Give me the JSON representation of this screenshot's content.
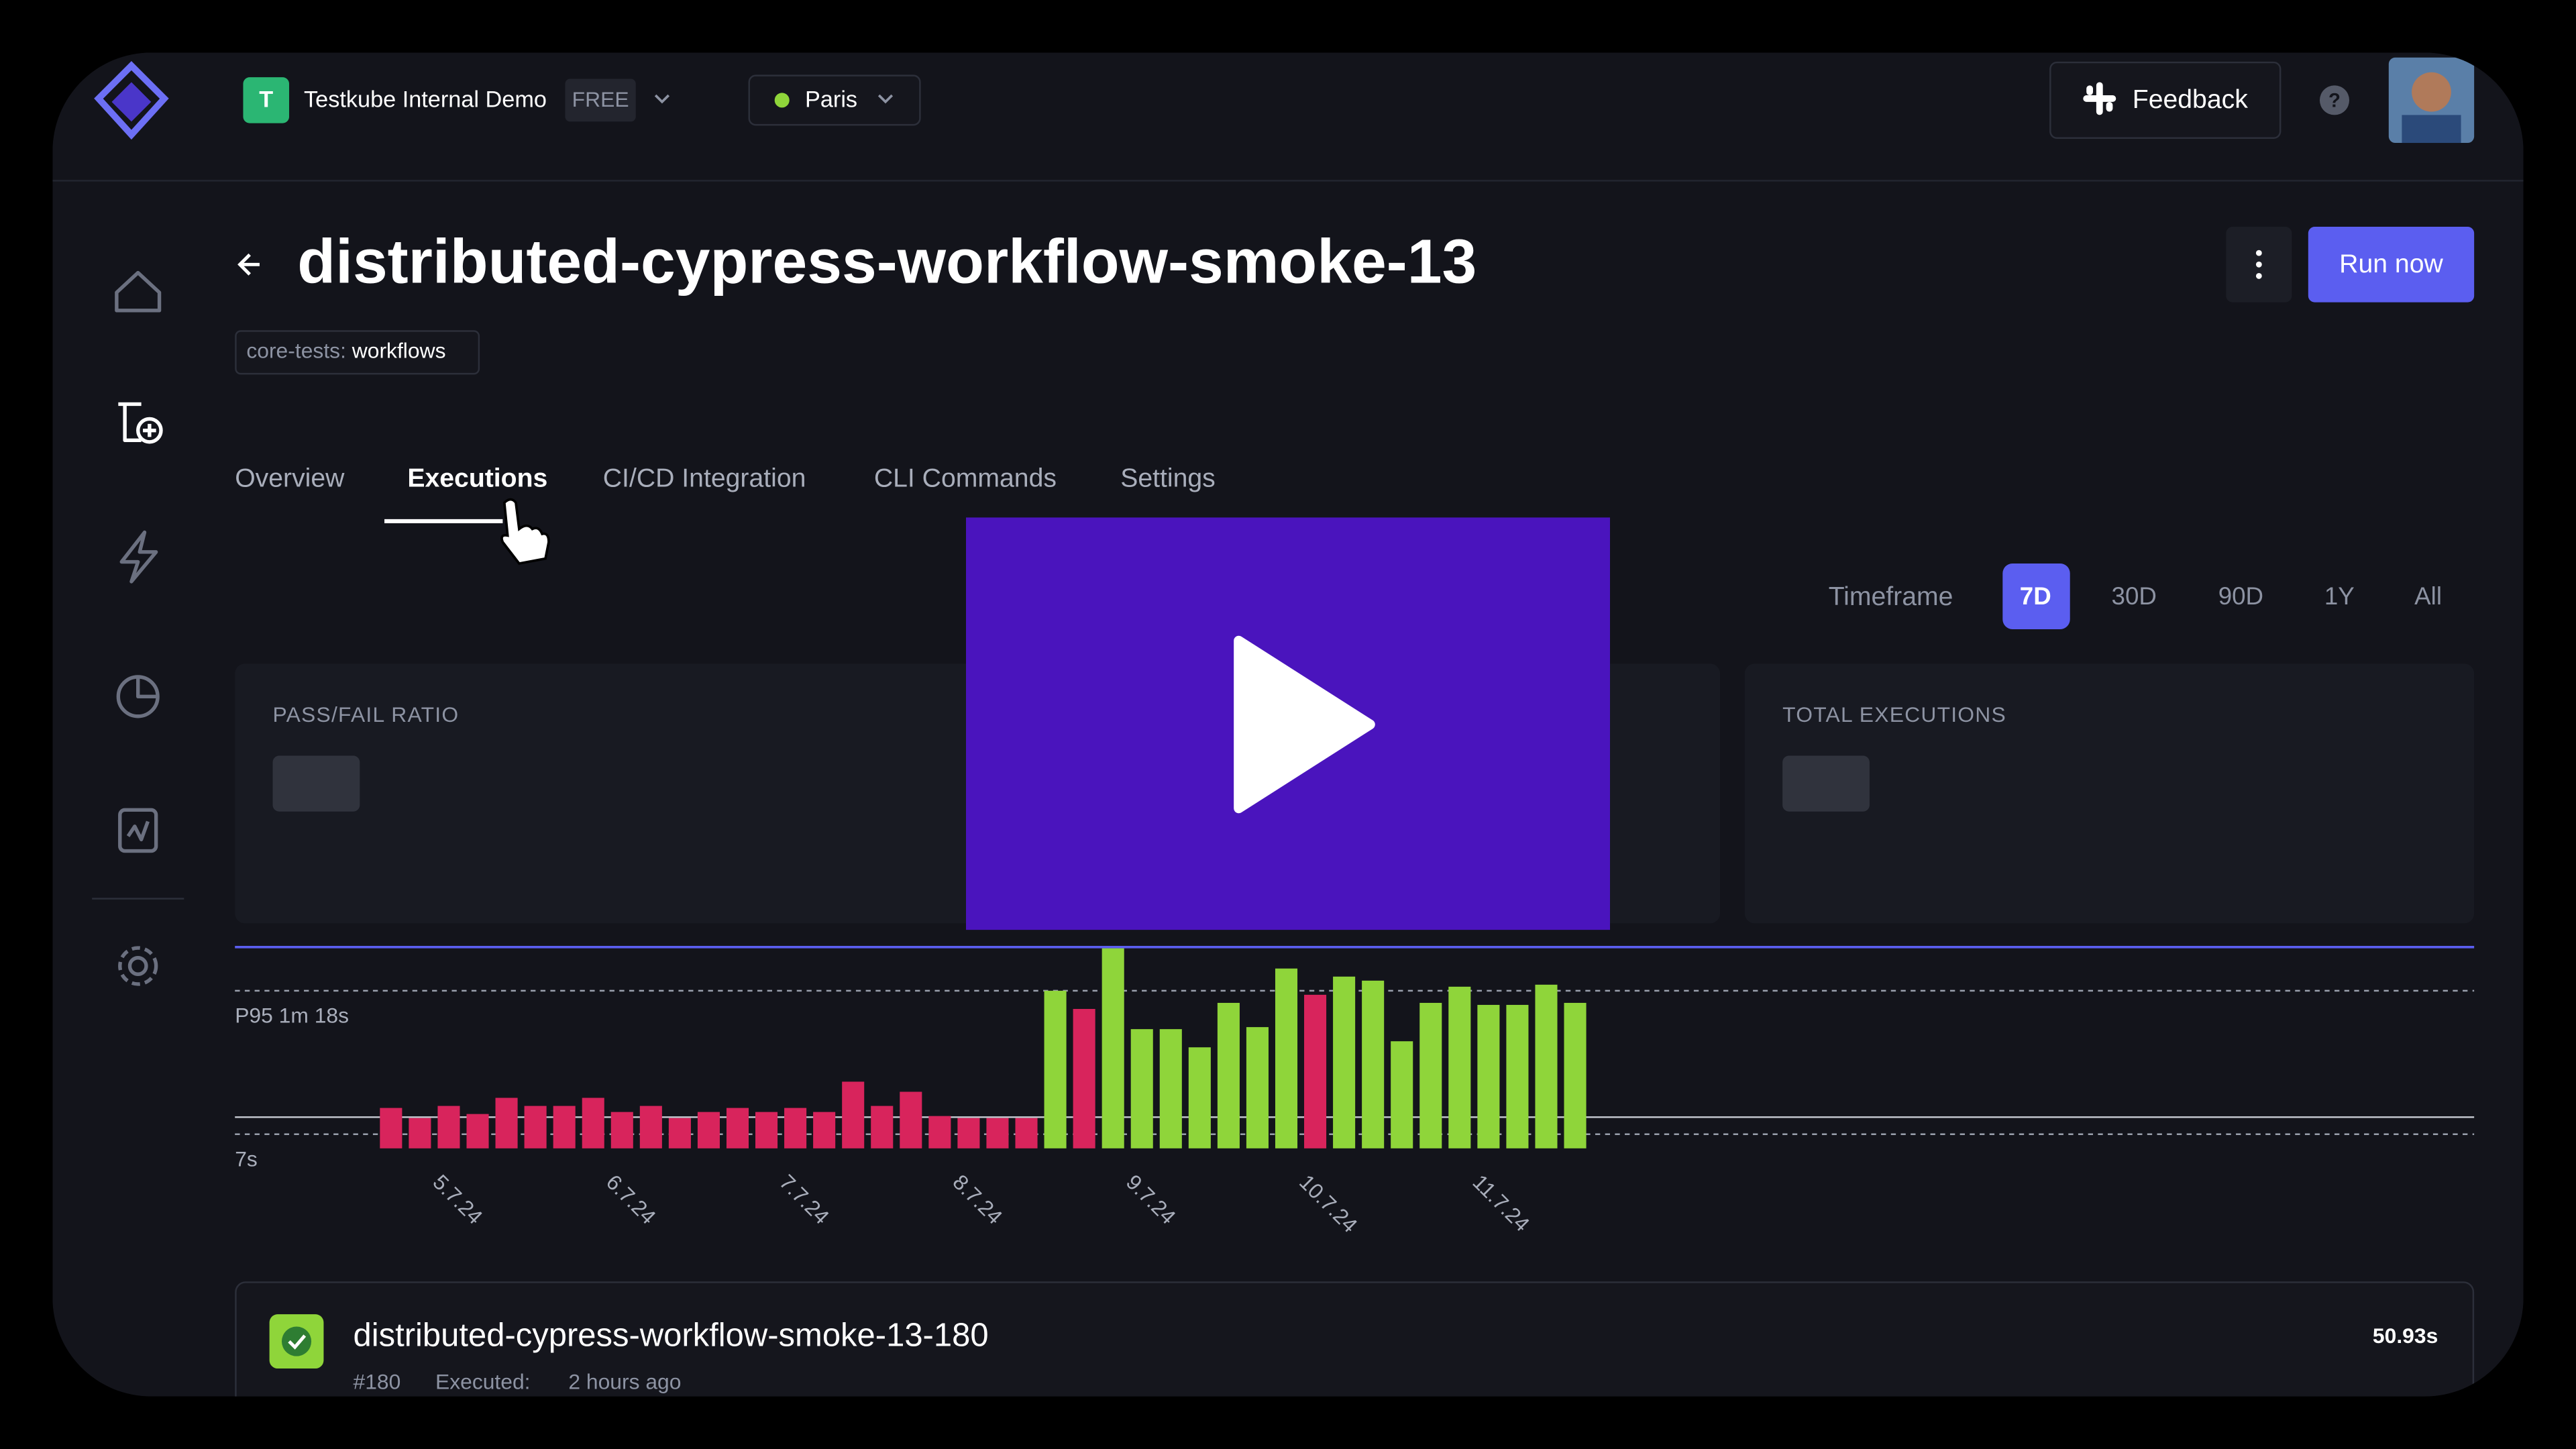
{
  "topbar": {
    "workspace_initial": "T",
    "workspace_name": "Testkube Internal Demo",
    "plan": "FREE",
    "environment": "Paris",
    "feedback": "Feedback"
  },
  "header": {
    "title": "distributed-cypress-workflow-smoke-13",
    "label_key": "core-tests:",
    "label_value": "workflows",
    "run_button": "Run now"
  },
  "tabs": [
    "Overview",
    "Executions",
    "CI/CD Integration",
    "CLI Commands",
    "Settings"
  ],
  "timeframe": {
    "label": "Timeframe",
    "options": [
      "7D",
      "30D",
      "90D",
      "1Y",
      "All"
    ]
  },
  "cards": [
    "PASS/FAIL RATIO",
    "TOTAL EXECUTIONS"
  ],
  "chart_data": {
    "type": "bar",
    "categories": [
      null,
      null,
      "5.7.24",
      null,
      null,
      null,
      null,
      null,
      "6.7.24",
      null,
      null,
      null,
      null,
      null,
      "7.7.24",
      null,
      null,
      null,
      null,
      null,
      "8.7.24",
      null,
      null,
      null,
      null,
      null,
      "9.7.24",
      null,
      null,
      null,
      null,
      null,
      "10.7.24",
      null,
      null,
      null,
      null,
      null,
      "11.7.24",
      null,
      null,
      null
    ],
    "values": [
      20,
      15,
      21,
      17,
      25,
      21,
      21,
      25,
      18,
      21,
      15,
      18,
      20,
      18,
      20,
      18,
      33,
      21,
      28,
      16,
      15,
      15,
      15,
      78,
      69,
      99,
      59,
      59,
      50,
      72,
      60,
      89,
      76,
      85,
      83,
      53,
      72,
      80,
      71,
      71,
      81,
      72
    ],
    "colors": [
      "#d8245c",
      "#d8245c",
      "#d8245c",
      "#d8245c",
      "#d8245c",
      "#d8245c",
      "#d8245c",
      "#d8245c",
      "#d8245c",
      "#d8245c",
      "#d8245c",
      "#d8245c",
      "#d8245c",
      "#d8245c",
      "#d8245c",
      "#d8245c",
      "#d8245c",
      "#d8245c",
      "#d8245c",
      "#d8245c",
      "#d8245c",
      "#d8245c",
      "#d8245c",
      "#8fd53a",
      "#d8245c",
      "#8fd53a",
      "#8fd53a",
      "#8fd53a",
      "#8fd53a",
      "#8fd53a",
      "#8fd53a",
      "#8fd53a",
      "#d8245c",
      "#8fd53a",
      "#8fd53a",
      "#8fd53a",
      "#8fd53a",
      "#8fd53a",
      "#8fd53a",
      "#8fd53a",
      "#8fd53a",
      "#8fd53a"
    ],
    "ylim": [
      0,
      100
    ],
    "reference_lines": [
      {
        "value": 78,
        "label": "P95 1m 18s"
      },
      {
        "value": 7,
        "label": "7s"
      }
    ]
  },
  "execution": {
    "name": "distributed-cypress-workflow-smoke-13-180",
    "number": "#180",
    "executed_label": "Executed:",
    "time": "2 hours ago",
    "duration": "50.93s"
  }
}
